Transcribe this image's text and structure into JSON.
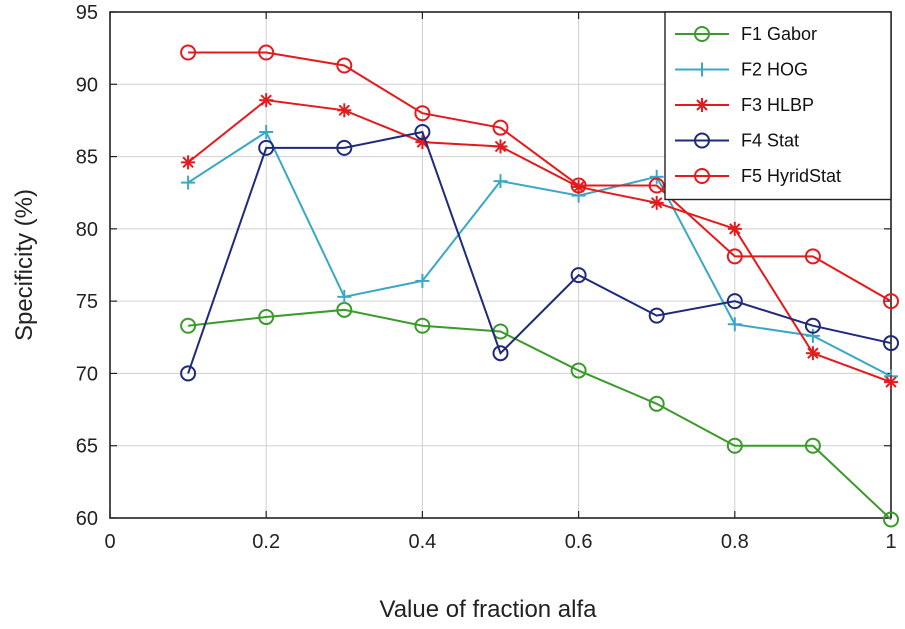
{
  "chart_data": {
    "type": "line",
    "title": "",
    "xlabel": "Value of fraction alfa",
    "ylabel": "Specificity (%)",
    "xlim": [
      0,
      1
    ],
    "ylim": [
      60,
      95
    ],
    "xticks": [
      0,
      0.2,
      0.4,
      0.6,
      0.8,
      1
    ],
    "xtick_labels": [
      "0",
      "0.2",
      "0.4",
      "0.6",
      "0.8",
      "1"
    ],
    "yticks": [
      60,
      65,
      70,
      75,
      80,
      85,
      90,
      95
    ],
    "ytick_labels": [
      "60",
      "65",
      "70",
      "75",
      "80",
      "85",
      "90",
      "95"
    ],
    "grid": true,
    "legend_position": "top-right",
    "x": [
      0.1,
      0.2,
      0.3,
      0.4,
      0.5,
      0.6,
      0.7,
      0.8,
      0.9,
      1.0
    ],
    "series": [
      {
        "name": "F1 Gabor",
        "color": "#3a9a2a",
        "marker": "circle",
        "values": [
          73.3,
          73.9,
          74.4,
          73.3,
          72.9,
          70.2,
          67.9,
          65.0,
          65.0,
          59.9
        ]
      },
      {
        "name": "F2 HOG",
        "color": "#3aa8c4",
        "marker": "plus",
        "values": [
          83.2,
          86.7,
          75.3,
          76.4,
          83.3,
          82.3,
          83.6,
          73.4,
          72.6,
          69.8
        ]
      },
      {
        "name": "F3 HLBP",
        "color": "#e41a1c",
        "marker": "asterisk",
        "values": [
          84.6,
          88.9,
          88.2,
          86.0,
          85.7,
          82.9,
          81.8,
          80.0,
          71.4,
          69.4
        ]
      },
      {
        "name": "F4 Stat",
        "color": "#1f2a7a",
        "marker": "circle",
        "values": [
          70.0,
          85.6,
          85.6,
          86.7,
          71.4,
          76.8,
          74.0,
          75.0,
          73.3,
          72.1
        ]
      },
      {
        "name": "F5 HyridStat",
        "color": "#e41a1c",
        "marker": "circle",
        "values": [
          92.2,
          92.2,
          91.3,
          88.0,
          87.0,
          83.0,
          83.0,
          78.1,
          78.1,
          75.0
        ]
      }
    ]
  }
}
